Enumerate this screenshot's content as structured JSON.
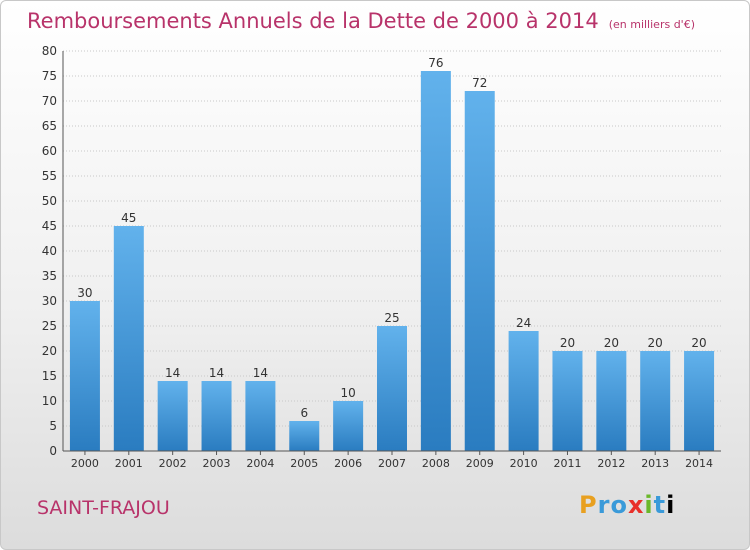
{
  "header": {
    "title": "Remboursements Annuels de la Dette de 2000 à 2014",
    "unit": "(en milliers d'€)"
  },
  "footer": {
    "city": "SAINT-FRAJOU",
    "logo_text": "Proxiti"
  },
  "colors": {
    "title": "#b8336a",
    "bar_top": "#62b2ec",
    "bar_bottom": "#2a7cc0",
    "grid": "#c8c8c8"
  },
  "chart_data": {
    "type": "bar",
    "title": "Remboursements Annuels de la Dette de 2000 à 2014",
    "subtitle": "(en milliers d'€)",
    "categories": [
      "2000",
      "2001",
      "2002",
      "2003",
      "2004",
      "2005",
      "2006",
      "2007",
      "2008",
      "2009",
      "2010",
      "2011",
      "2012",
      "2013",
      "2014"
    ],
    "values": [
      30,
      45,
      14,
      14,
      14,
      6,
      10,
      25,
      76,
      72,
      24,
      20,
      20,
      20,
      20
    ],
    "ylim": [
      0,
      80
    ],
    "yticks": [
      0,
      5,
      10,
      15,
      20,
      25,
      30,
      35,
      40,
      45,
      50,
      55,
      60,
      65,
      70,
      75,
      80
    ],
    "grid": true,
    "legend": "none"
  }
}
